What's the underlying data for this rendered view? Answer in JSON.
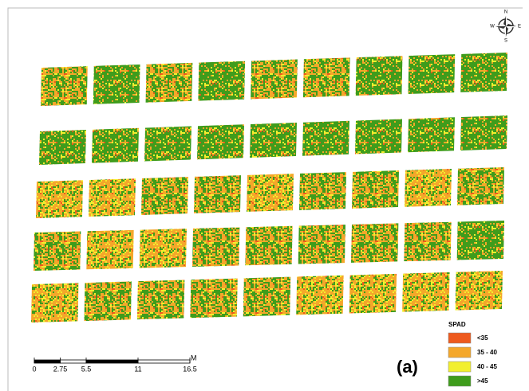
{
  "compass": {
    "north": "N",
    "south": "S",
    "east": "E",
    "west": "W"
  },
  "legend": {
    "title": "SPAD",
    "items": [
      {
        "label": "<35",
        "color": "#ee5a1e"
      },
      {
        "label": "35 - 40",
        "color": "#f4a72a"
      },
      {
        "label": "40 - 45",
        "color": "#f2ef2e"
      },
      {
        "label": ">45",
        "color": "#3f9c1c"
      }
    ]
  },
  "scale_bar": {
    "ticks": [
      0,
      2.75,
      5.5,
      11,
      16.5
    ],
    "unit": "M"
  },
  "panel_label": "(a)"
}
